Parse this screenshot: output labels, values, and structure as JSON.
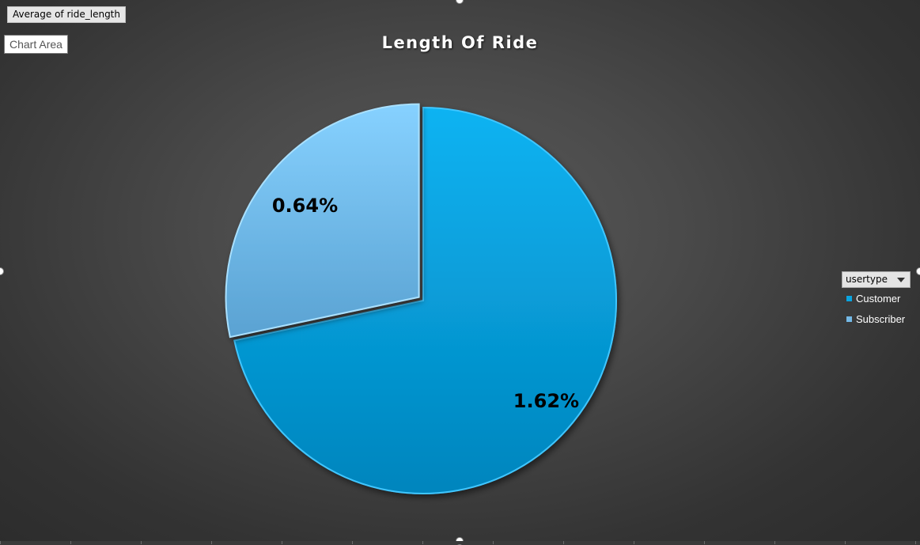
{
  "chart_field_button": "Average of ride_length",
  "tooltip": "Chart Area",
  "legend": {
    "filter_label": "usertype",
    "filter_icon": "dropdown-arrow-icon"
  },
  "colors": {
    "customer": "#0aa4e0",
    "subscriber": "#74b9e6",
    "background": "#3a3a3a"
  },
  "chart_data": {
    "type": "pie",
    "title": "Length Of Ride",
    "categories": [
      "Customer",
      "Subscriber"
    ],
    "values": [
      1.62,
      0.64
    ],
    "labels": [
      "1.62%",
      "0.64%"
    ],
    "legend": "right",
    "exploded": [
      "Subscriber"
    ]
  }
}
